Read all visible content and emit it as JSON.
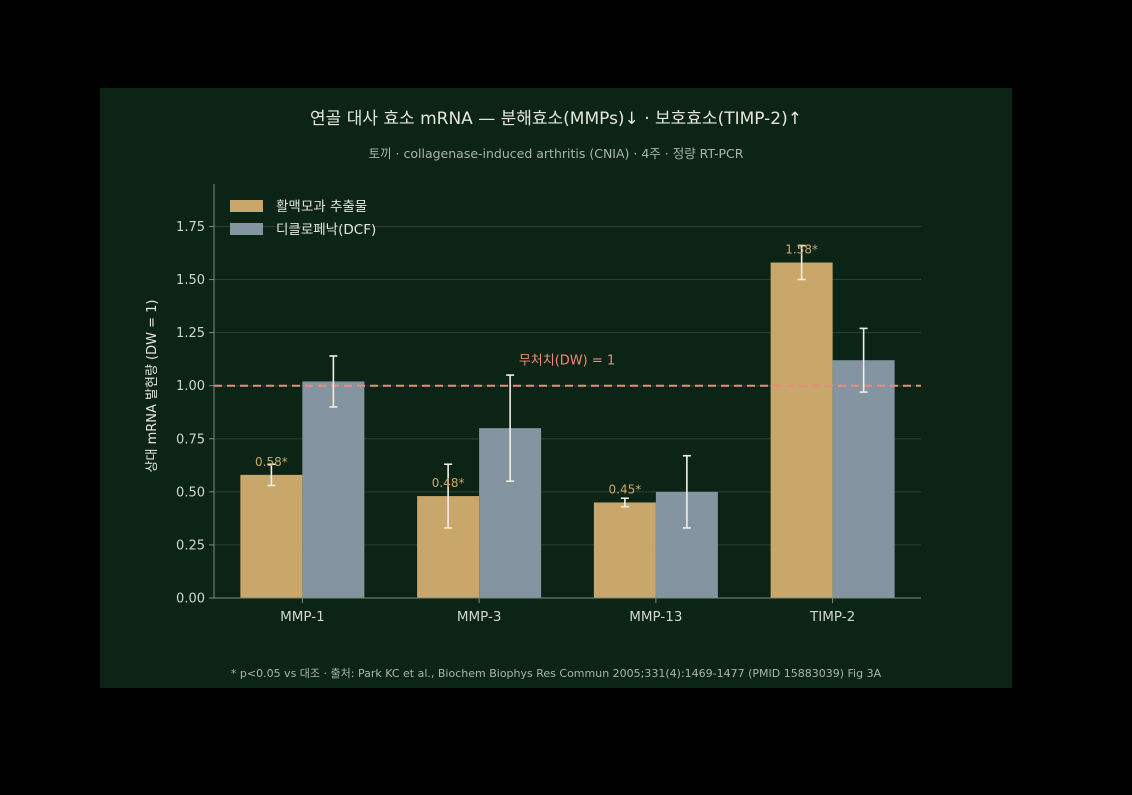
{
  "colors": {
    "background": "#000000",
    "panel": "#0c2416",
    "series_extract": "#c9a76a",
    "series_dcf": "#8494a0",
    "reference_line": "#f08a78",
    "error_bar": "#f2efe2"
  },
  "chart_data": {
    "type": "bar",
    "title": "연골 대사 효소 mRNA — 분해효소(MMPs)↓ · 보호효소(TIMP-2)↑",
    "subtitle": "토끼 · collagenase-induced arthritis (CNIA) · 4주 · 정량 RT-PCR",
    "xlabel": "",
    "ylabel": "상대 mRNA 발현량 (DW = 1)",
    "ylim": [
      0,
      1.95
    ],
    "yticks": [
      "0.00",
      "0.25",
      "0.50",
      "0.75",
      "1.00",
      "1.25",
      "1.50",
      "1.75"
    ],
    "categories": [
      "MMP-1",
      "MMP-3",
      "MMP-13",
      "TIMP-2"
    ],
    "series": [
      {
        "name": "활맥모과 추출물",
        "values": [
          0.58,
          0.48,
          0.45,
          1.58
        ],
        "errors": [
          0.05,
          0.15,
          0.02,
          0.08
        ],
        "labels": [
          "0.58*",
          "0.48*",
          "0.45*",
          "1.58*"
        ]
      },
      {
        "name": "디클로페낙(DCF)",
        "values": [
          1.02,
          0.8,
          0.5,
          1.12
        ],
        "errors": [
          0.12,
          0.25,
          0.17,
          0.15
        ]
      }
    ],
    "reference_line": {
      "value": 1.0,
      "label": "무처치(DW) = 1"
    },
    "grid": "horizontal",
    "legend_position": "top-left",
    "footnote": "* p<0.05 vs 대조 · 출처: Park KC et al., Biochem Biophys Res Commun 2005;331(4):1469-1477 (PMID 15883039) Fig 3A"
  }
}
